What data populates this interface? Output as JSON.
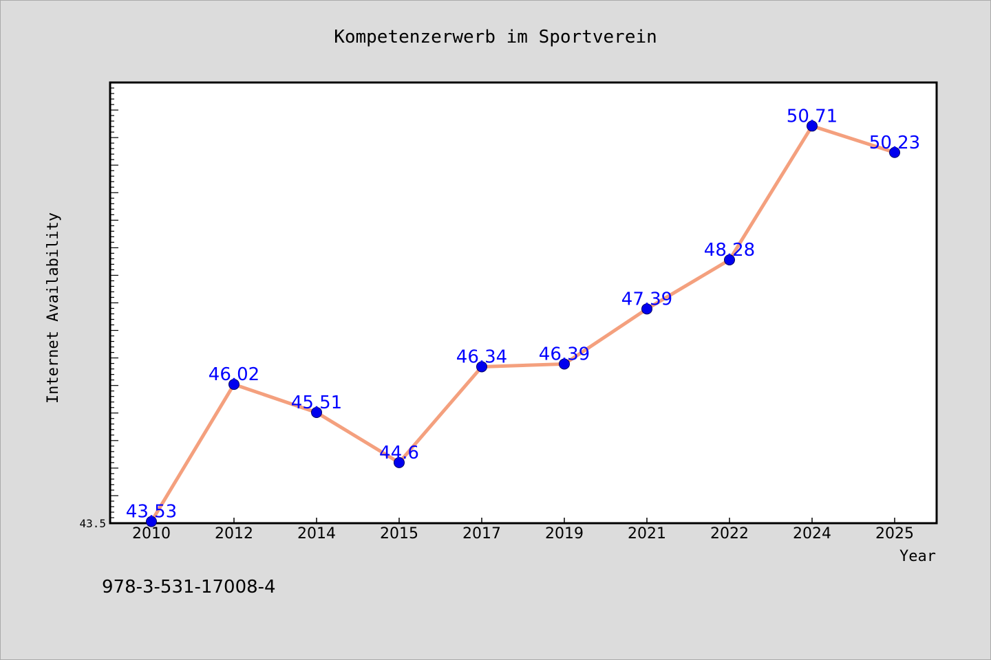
{
  "chart_data": {
    "type": "line",
    "title": "Kompetenzerwerb im Sportverein",
    "xlabel": "Year",
    "ylabel": "Internet Availability",
    "categories": [
      "2010",
      "2012",
      "2014",
      "2015",
      "2017",
      "2019",
      "2021",
      "2022",
      "2024",
      "2025"
    ],
    "series": [
      {
        "values": [
          43.53,
          46.02,
          45.51,
          44.6,
          46.34,
          46.39,
          47.39,
          48.28,
          50.71,
          50.23
        ]
      }
    ],
    "data_labels": [
      "43.53",
      "46.02",
      "45.51",
      "44.6",
      "46.34",
      "46.39",
      "47.39",
      "48.28",
      "50.71",
      "50.23"
    ],
    "y_tick_labels": [
      "43.5"
    ],
    "ylim": [
      43.5,
      51.5
    ],
    "grid": false,
    "legend": "none",
    "annotation": "978-3-531-17008-4",
    "colors": {
      "background": "#dcdcdc",
      "plot_background": "#ffffff",
      "line": "#f4a07e",
      "marker": "#0000ee",
      "label": "#0000ff",
      "axis": "#000000"
    }
  }
}
